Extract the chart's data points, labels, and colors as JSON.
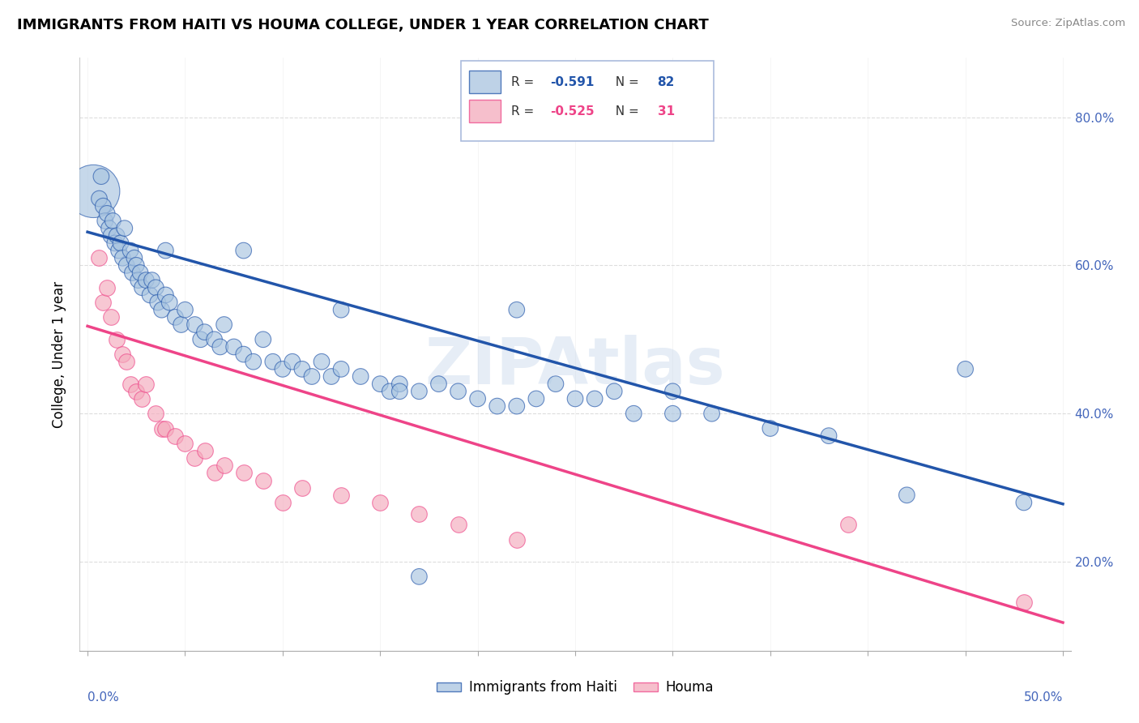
{
  "title": "IMMIGRANTS FROM HAITI VS HOUMA COLLEGE, UNDER 1 YEAR CORRELATION CHART",
  "source": "Source: ZipAtlas.com",
  "ylabel": "College, Under 1 year",
  "blue_color": "#A8C4E0",
  "pink_color": "#F4AABC",
  "blue_line_color": "#2255AA",
  "pink_line_color": "#EE4488",
  "watermark": "ZIPAtlas",
  "xlim": [
    0.0,
    0.5
  ],
  "ylim": [
    0.08,
    0.88
  ],
  "y_ticks": [
    0.2,
    0.4,
    0.6,
    0.8
  ],
  "y_tick_labels": [
    "20.0%",
    "40.0%",
    "60.0%",
    "80.0%"
  ],
  "blue_r": "-0.591",
  "blue_n": "82",
  "pink_r": "-0.525",
  "pink_n": "31",
  "blue_line_x0": 0.0,
  "blue_line_y0": 0.645,
  "blue_line_x1": 0.5,
  "blue_line_y1": 0.278,
  "pink_line_x0": 0.0,
  "pink_line_y0": 0.518,
  "pink_line_x1": 0.5,
  "pink_line_y1": 0.118,
  "blue_x": [
    0.003,
    0.006,
    0.007,
    0.008,
    0.009,
    0.01,
    0.011,
    0.012,
    0.013,
    0.014,
    0.015,
    0.016,
    0.017,
    0.018,
    0.019,
    0.02,
    0.022,
    0.023,
    0.024,
    0.025,
    0.026,
    0.027,
    0.028,
    0.03,
    0.032,
    0.033,
    0.035,
    0.036,
    0.038,
    0.04,
    0.042,
    0.045,
    0.048,
    0.05,
    0.055,
    0.058,
    0.06,
    0.065,
    0.068,
    0.07,
    0.075,
    0.08,
    0.085,
    0.09,
    0.095,
    0.1,
    0.105,
    0.11,
    0.115,
    0.12,
    0.125,
    0.13,
    0.14,
    0.15,
    0.155,
    0.16,
    0.17,
    0.18,
    0.19,
    0.2,
    0.21,
    0.22,
    0.23,
    0.24,
    0.25,
    0.26,
    0.27,
    0.28,
    0.3,
    0.32,
    0.35,
    0.38,
    0.42,
    0.13,
    0.22,
    0.04,
    0.08,
    0.16,
    0.3,
    0.17,
    0.45,
    0.48
  ],
  "blue_y": [
    0.7,
    0.69,
    0.72,
    0.68,
    0.66,
    0.67,
    0.65,
    0.64,
    0.66,
    0.63,
    0.64,
    0.62,
    0.63,
    0.61,
    0.65,
    0.6,
    0.62,
    0.59,
    0.61,
    0.6,
    0.58,
    0.59,
    0.57,
    0.58,
    0.56,
    0.58,
    0.57,
    0.55,
    0.54,
    0.56,
    0.55,
    0.53,
    0.52,
    0.54,
    0.52,
    0.5,
    0.51,
    0.5,
    0.49,
    0.52,
    0.49,
    0.48,
    0.47,
    0.5,
    0.47,
    0.46,
    0.47,
    0.46,
    0.45,
    0.47,
    0.45,
    0.46,
    0.45,
    0.44,
    0.43,
    0.44,
    0.43,
    0.44,
    0.43,
    0.42,
    0.41,
    0.41,
    0.42,
    0.44,
    0.42,
    0.42,
    0.43,
    0.4,
    0.4,
    0.4,
    0.38,
    0.37,
    0.29,
    0.54,
    0.54,
    0.62,
    0.62,
    0.43,
    0.43,
    0.18,
    0.46,
    0.28
  ],
  "blue_sizes": [
    200,
    200,
    200,
    200,
    200,
    200,
    200,
    200,
    200,
    200,
    200,
    200,
    200,
    200,
    200,
    200,
    200,
    200,
    200,
    200,
    200,
    200,
    200,
    200,
    200,
    200,
    200,
    200,
    200,
    200,
    200,
    200,
    200,
    200,
    200,
    200,
    200,
    200,
    200,
    200,
    200,
    200,
    200,
    200,
    200,
    200,
    200,
    200,
    200,
    200,
    200,
    200,
    200,
    200,
    200,
    200,
    200,
    200,
    200,
    200,
    200,
    200,
    200,
    200,
    200,
    200,
    200,
    200,
    200,
    200,
    200,
    200,
    200,
    200,
    200,
    200,
    200,
    200,
    200,
    200,
    200,
    200
  ],
  "blue_large_idx": 0,
  "blue_large_size": 2200,
  "pink_x": [
    0.006,
    0.008,
    0.01,
    0.012,
    0.015,
    0.018,
    0.02,
    0.022,
    0.025,
    0.028,
    0.03,
    0.035,
    0.038,
    0.04,
    0.045,
    0.05,
    0.055,
    0.06,
    0.065,
    0.07,
    0.08,
    0.09,
    0.1,
    0.11,
    0.13,
    0.15,
    0.17,
    0.19,
    0.22,
    0.39,
    0.48
  ],
  "pink_y": [
    0.61,
    0.55,
    0.57,
    0.53,
    0.5,
    0.48,
    0.47,
    0.44,
    0.43,
    0.42,
    0.44,
    0.4,
    0.38,
    0.38,
    0.37,
    0.36,
    0.34,
    0.35,
    0.32,
    0.33,
    0.32,
    0.31,
    0.28,
    0.3,
    0.29,
    0.28,
    0.265,
    0.25,
    0.23,
    0.25,
    0.145
  ]
}
